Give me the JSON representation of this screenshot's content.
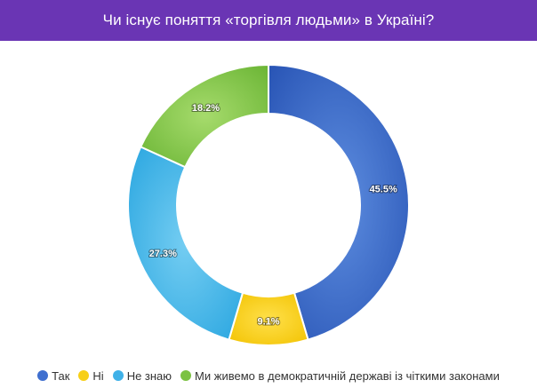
{
  "header": {
    "title": "Чи існує поняття «торгівля людьми» в Україні?",
    "background": "#6a35b4"
  },
  "chart_data": {
    "type": "pie",
    "variant": "donut",
    "title": "Чи існує поняття «торгівля людьми» в Україні?",
    "series": [
      {
        "name": "Так",
        "value": 45.5,
        "label": "45.5%",
        "color": "#3f6fcf"
      },
      {
        "name": "Ні",
        "value": 9.1,
        "label": "9.1%",
        "color": "#f7cf17"
      },
      {
        "name": "Не знаю",
        "value": 27.3,
        "label": "27.3%",
        "color": "#3fb1e8"
      },
      {
        "name": "Ми живемо в демократичній державі із чіткими законами",
        "value": 18.2,
        "label": "18.2%",
        "color": "#7cc243"
      }
    ],
    "legend_position": "bottom",
    "start_angle": "top",
    "direction": "clockwise"
  }
}
